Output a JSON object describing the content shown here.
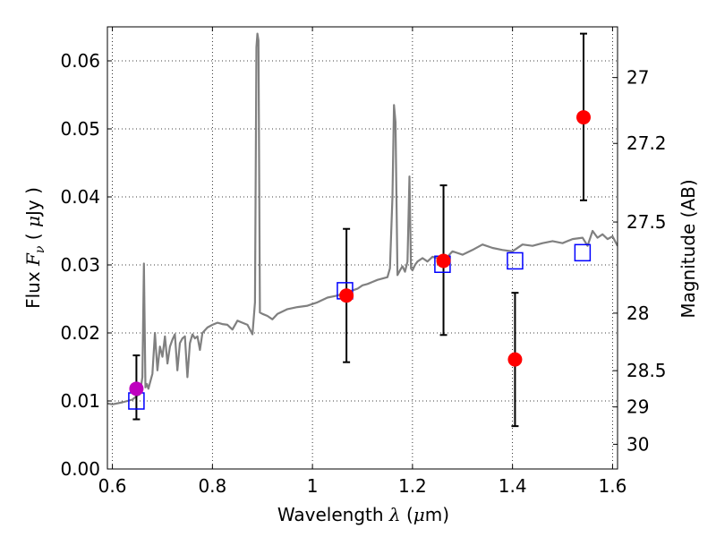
{
  "chart_data": {
    "type": "scatter",
    "xlabel": "Wavelength",
    "xlabel_symbol": "λ",
    "xlabel_unit_pre": "(",
    "xlabel_unit_mu": "μ",
    "xlabel_unit_post": "m)",
    "ylabel": "Flux",
    "ylabel_symbol": "F",
    "ylabel_subscript": "ν",
    "ylabel_unit_pre": "(",
    "ylabel_unit_mu": "μ",
    "ylabel_unit_post": "Jy )",
    "y2label": "Magnitude (AB)",
    "xlim": [
      0.59,
      1.61
    ],
    "ylim": [
      0.0,
      0.065
    ],
    "grid": true,
    "x_ticks": [
      0.6,
      0.8,
      1.0,
      1.2,
      1.4,
      1.6
    ],
    "x_tick_labels": [
      "0.6",
      "0.8",
      "1",
      "1.2",
      "1.4",
      "1.6"
    ],
    "y_ticks": [
      0.0,
      0.01,
      0.02,
      0.03,
      0.04,
      0.05,
      0.06
    ],
    "y_tick_labels": [
      "0.00",
      "0.01",
      "0.02",
      "0.03",
      "0.04",
      "0.05",
      "0.06"
    ],
    "y2_ticks": [
      {
        "mag": 27,
        "label": "27"
      },
      {
        "mag": 27.2,
        "label": "27.2"
      },
      {
        "mag": 27.5,
        "label": "27.5"
      },
      {
        "mag": 28,
        "label": "28"
      },
      {
        "mag": 28.5,
        "label": "28.5"
      },
      {
        "mag": 29,
        "label": "29"
      },
      {
        "mag": 30,
        "label": "30"
      }
    ],
    "model_spectrum": {
      "color": "#808080",
      "x": [
        0.585,
        0.6,
        0.62,
        0.64,
        0.65,
        0.655,
        0.66,
        0.663,
        0.666,
        0.669,
        0.672,
        0.68,
        0.685,
        0.69,
        0.695,
        0.7,
        0.705,
        0.71,
        0.715,
        0.72,
        0.725,
        0.73,
        0.735,
        0.74,
        0.745,
        0.75,
        0.755,
        0.76,
        0.765,
        0.77,
        0.775,
        0.78,
        0.79,
        0.8,
        0.81,
        0.82,
        0.83,
        0.84,
        0.85,
        0.86,
        0.87,
        0.88,
        0.885,
        0.888,
        0.89,
        0.892,
        0.895,
        0.9,
        0.91,
        0.92,
        0.93,
        0.95,
        0.97,
        0.99,
        1.01,
        1.03,
        1.05,
        1.07,
        1.09,
        1.1,
        1.11,
        1.12,
        1.13,
        1.14,
        1.15,
        1.155,
        1.16,
        1.163,
        1.166,
        1.17,
        1.175,
        1.18,
        1.185,
        1.19,
        1.194,
        1.197,
        1.2,
        1.205,
        1.21,
        1.22,
        1.23,
        1.24,
        1.25,
        1.26,
        1.27,
        1.28,
        1.3,
        1.32,
        1.34,
        1.36,
        1.38,
        1.4,
        1.42,
        1.44,
        1.46,
        1.48,
        1.5,
        1.52,
        1.54,
        1.55,
        1.56,
        1.57,
        1.58,
        1.59,
        1.6,
        1.61
      ],
      "y": [
        0.0097,
        0.0095,
        0.0098,
        0.0102,
        0.0108,
        0.011,
        0.0135,
        0.0302,
        0.012,
        0.0125,
        0.0118,
        0.014,
        0.02,
        0.0145,
        0.018,
        0.0165,
        0.0195,
        0.0155,
        0.018,
        0.019,
        0.0198,
        0.0145,
        0.0185,
        0.0192,
        0.0195,
        0.0135,
        0.0185,
        0.0198,
        0.0192,
        0.0195,
        0.0175,
        0.02,
        0.0208,
        0.0212,
        0.0215,
        0.0213,
        0.0212,
        0.0205,
        0.0218,
        0.0215,
        0.0212,
        0.0198,
        0.0245,
        0.062,
        0.064,
        0.063,
        0.023,
        0.0228,
        0.0225,
        0.022,
        0.0228,
        0.0235,
        0.0238,
        0.024,
        0.0245,
        0.0252,
        0.0255,
        0.026,
        0.0265,
        0.027,
        0.0272,
        0.0275,
        0.0278,
        0.028,
        0.0282,
        0.0295,
        0.04,
        0.0535,
        0.051,
        0.0285,
        0.0292,
        0.0298,
        0.029,
        0.0305,
        0.043,
        0.0295,
        0.0292,
        0.03,
        0.0305,
        0.031,
        0.0305,
        0.0312,
        0.031,
        0.0308,
        0.0312,
        0.032,
        0.0315,
        0.0322,
        0.033,
        0.0325,
        0.0322,
        0.032,
        0.033,
        0.0328,
        0.0332,
        0.0335,
        0.0332,
        0.0338,
        0.034,
        0.0328,
        0.035,
        0.034,
        0.0345,
        0.0338,
        0.0342,
        0.0328
      ]
    },
    "synthetic_photometry": {
      "color": "#0000ff",
      "x": [
        0.648,
        1.065,
        1.26,
        1.405,
        1.54
      ],
      "y": [
        0.01,
        0.0262,
        0.0301,
        0.0306,
        0.0318
      ]
    },
    "observations": [
      {
        "x": 0.648,
        "y": 0.0118,
        "yerr_low": 0.0073,
        "yerr_high": 0.0167,
        "color": "#bf00bf"
      },
      {
        "x": 1.068,
        "y": 0.0255,
        "yerr_low": 0.0157,
        "yerr_high": 0.0353,
        "color": "#ff0000"
      },
      {
        "x": 1.262,
        "y": 0.0306,
        "yerr_low": 0.0197,
        "yerr_high": 0.0417,
        "color": "#ff0000"
      },
      {
        "x": 1.405,
        "y": 0.0161,
        "yerr_low": 0.0063,
        "yerr_high": 0.0259,
        "color": "#ff0000"
      },
      {
        "x": 1.542,
        "y": 0.0517,
        "yerr_low": 0.0395,
        "yerr_high": 0.064,
        "color": "#ff0000"
      }
    ]
  }
}
